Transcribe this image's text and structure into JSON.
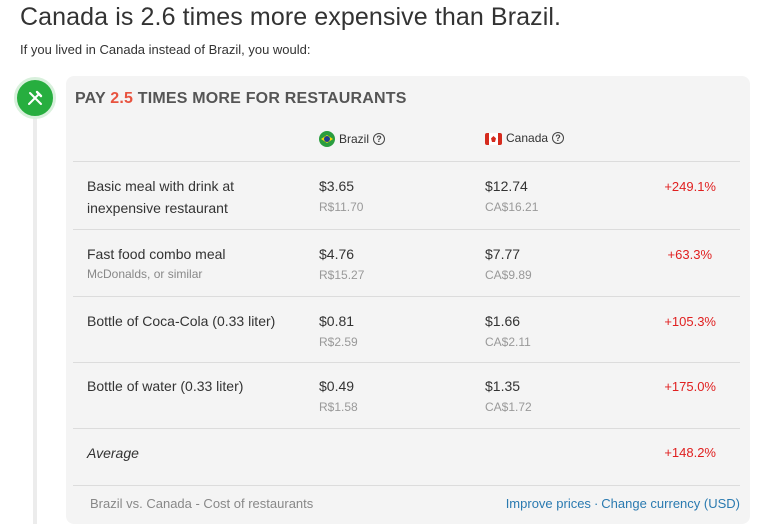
{
  "headline": "Canada is 2.6 times more expensive than Brazil.",
  "subline": "If you lived in Canada instead of Brazil, you would:",
  "category": {
    "icon": "fork-knife-icon",
    "title_prefix": "PAY",
    "multiplier": "2.5",
    "title_suffix": "TIMES MORE FOR RESTAURANTS"
  },
  "columns": {
    "country_a": "Brazil",
    "country_b": "Canada",
    "help_glyph": "?"
  },
  "rows": [
    {
      "name": "Basic meal with drink at inexpensive restaurant",
      "note": "",
      "a_usd": "$3.65",
      "a_local": "R$11.70",
      "b_usd": "$12.74",
      "b_local": "CA$16.21",
      "diff": "+249.1%"
    },
    {
      "name": "Fast food combo meal",
      "note": "McDonalds, or similar",
      "a_usd": "$4.76",
      "a_local": "R$15.27",
      "b_usd": "$7.77",
      "b_local": "CA$9.89",
      "diff": "+63.3%"
    },
    {
      "name": "Bottle of Coca-Cola (0.33 liter)",
      "note": "",
      "a_usd": "$0.81",
      "a_local": "R$2.59",
      "b_usd": "$1.66",
      "b_local": "CA$2.11",
      "diff": "+105.3%"
    },
    {
      "name": "Bottle of water (0.33 liter)",
      "note": "",
      "a_usd": "$0.49",
      "a_local": "R$1.58",
      "b_usd": "$1.35",
      "b_local": "CA$1.72",
      "diff": "+175.0%"
    }
  ],
  "average": {
    "label": "Average",
    "diff": "+148.2%"
  },
  "footer": {
    "caption": "Brazil vs. Canada - Cost of restaurants",
    "improve_link": "Improve prices",
    "separator": "·",
    "currency_link": "Change currency (USD)"
  },
  "colors": {
    "accent_green": "#27ae3f",
    "accent_red": "#e8533f",
    "diff_red": "#e02020",
    "link_blue": "#2a7ab0"
  }
}
